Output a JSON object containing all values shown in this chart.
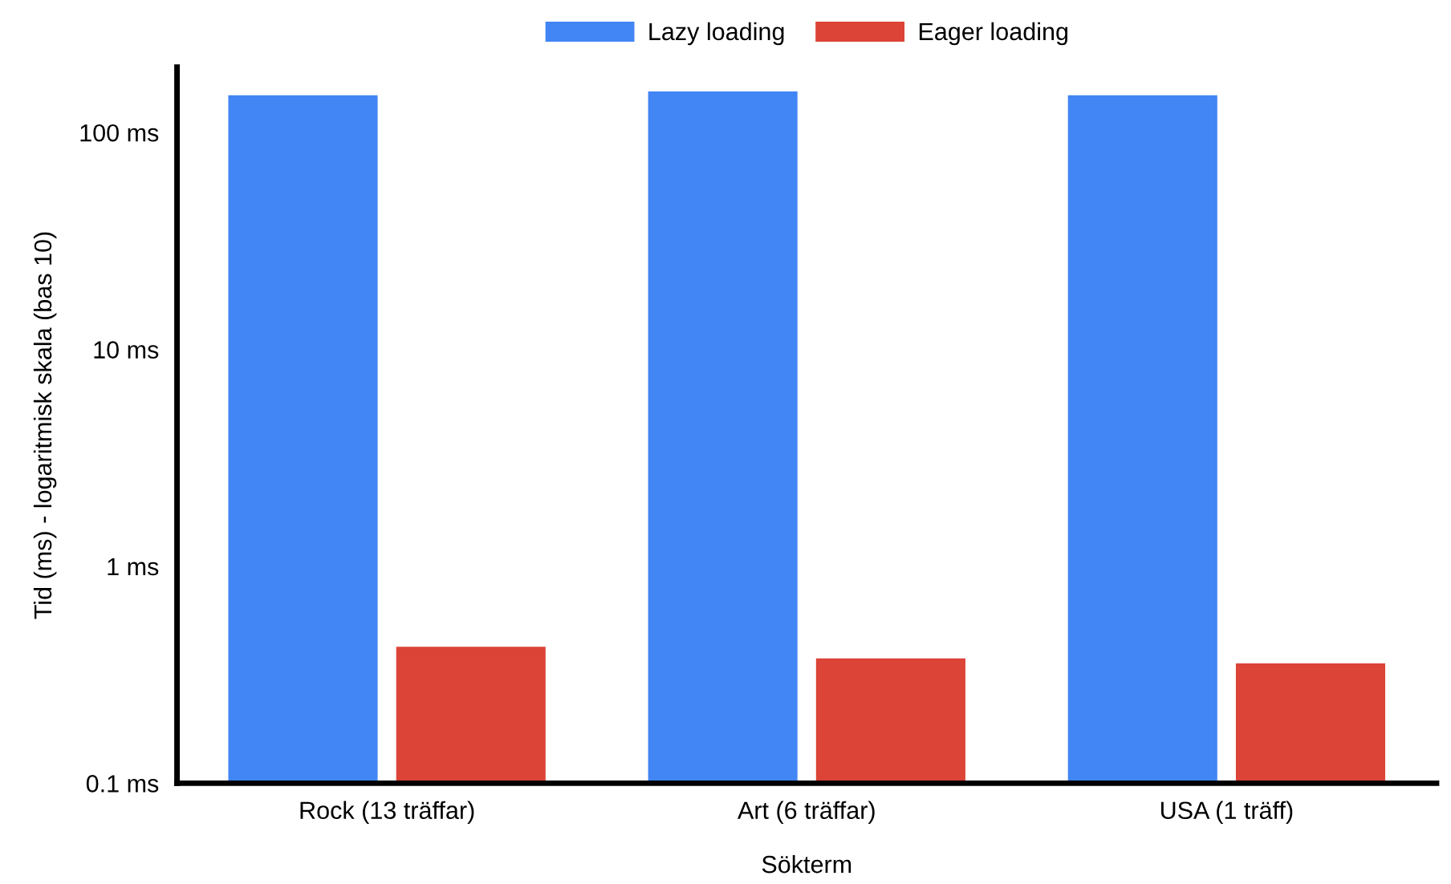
{
  "chart_data": {
    "type": "bar",
    "xlabel": "Sökterm",
    "ylabel": "Tid (ms) - logaritmisk skala (bas 10)",
    "categories": [
      "Rock (13 träffar)",
      "Art (6 träffar)",
      "USA (1 träff)"
    ],
    "series": [
      {
        "name": "Lazy loading",
        "color": "#4285f4",
        "values": [
          150,
          156,
          150
        ]
      },
      {
        "name": "Eager loading",
        "color": "#db4437",
        "values": [
          0.43,
          0.38,
          0.36
        ]
      }
    ],
    "log": true,
    "ylim": [
      0.1,
      200
    ],
    "yticks": [
      {
        "value": 0.1,
        "label": "0.1 ms"
      },
      {
        "value": 1,
        "label": "1 ms"
      },
      {
        "value": 10,
        "label": "10 ms"
      },
      {
        "value": 100,
        "label": "100 ms"
      }
    ],
    "grid": false,
    "legend": "top"
  }
}
